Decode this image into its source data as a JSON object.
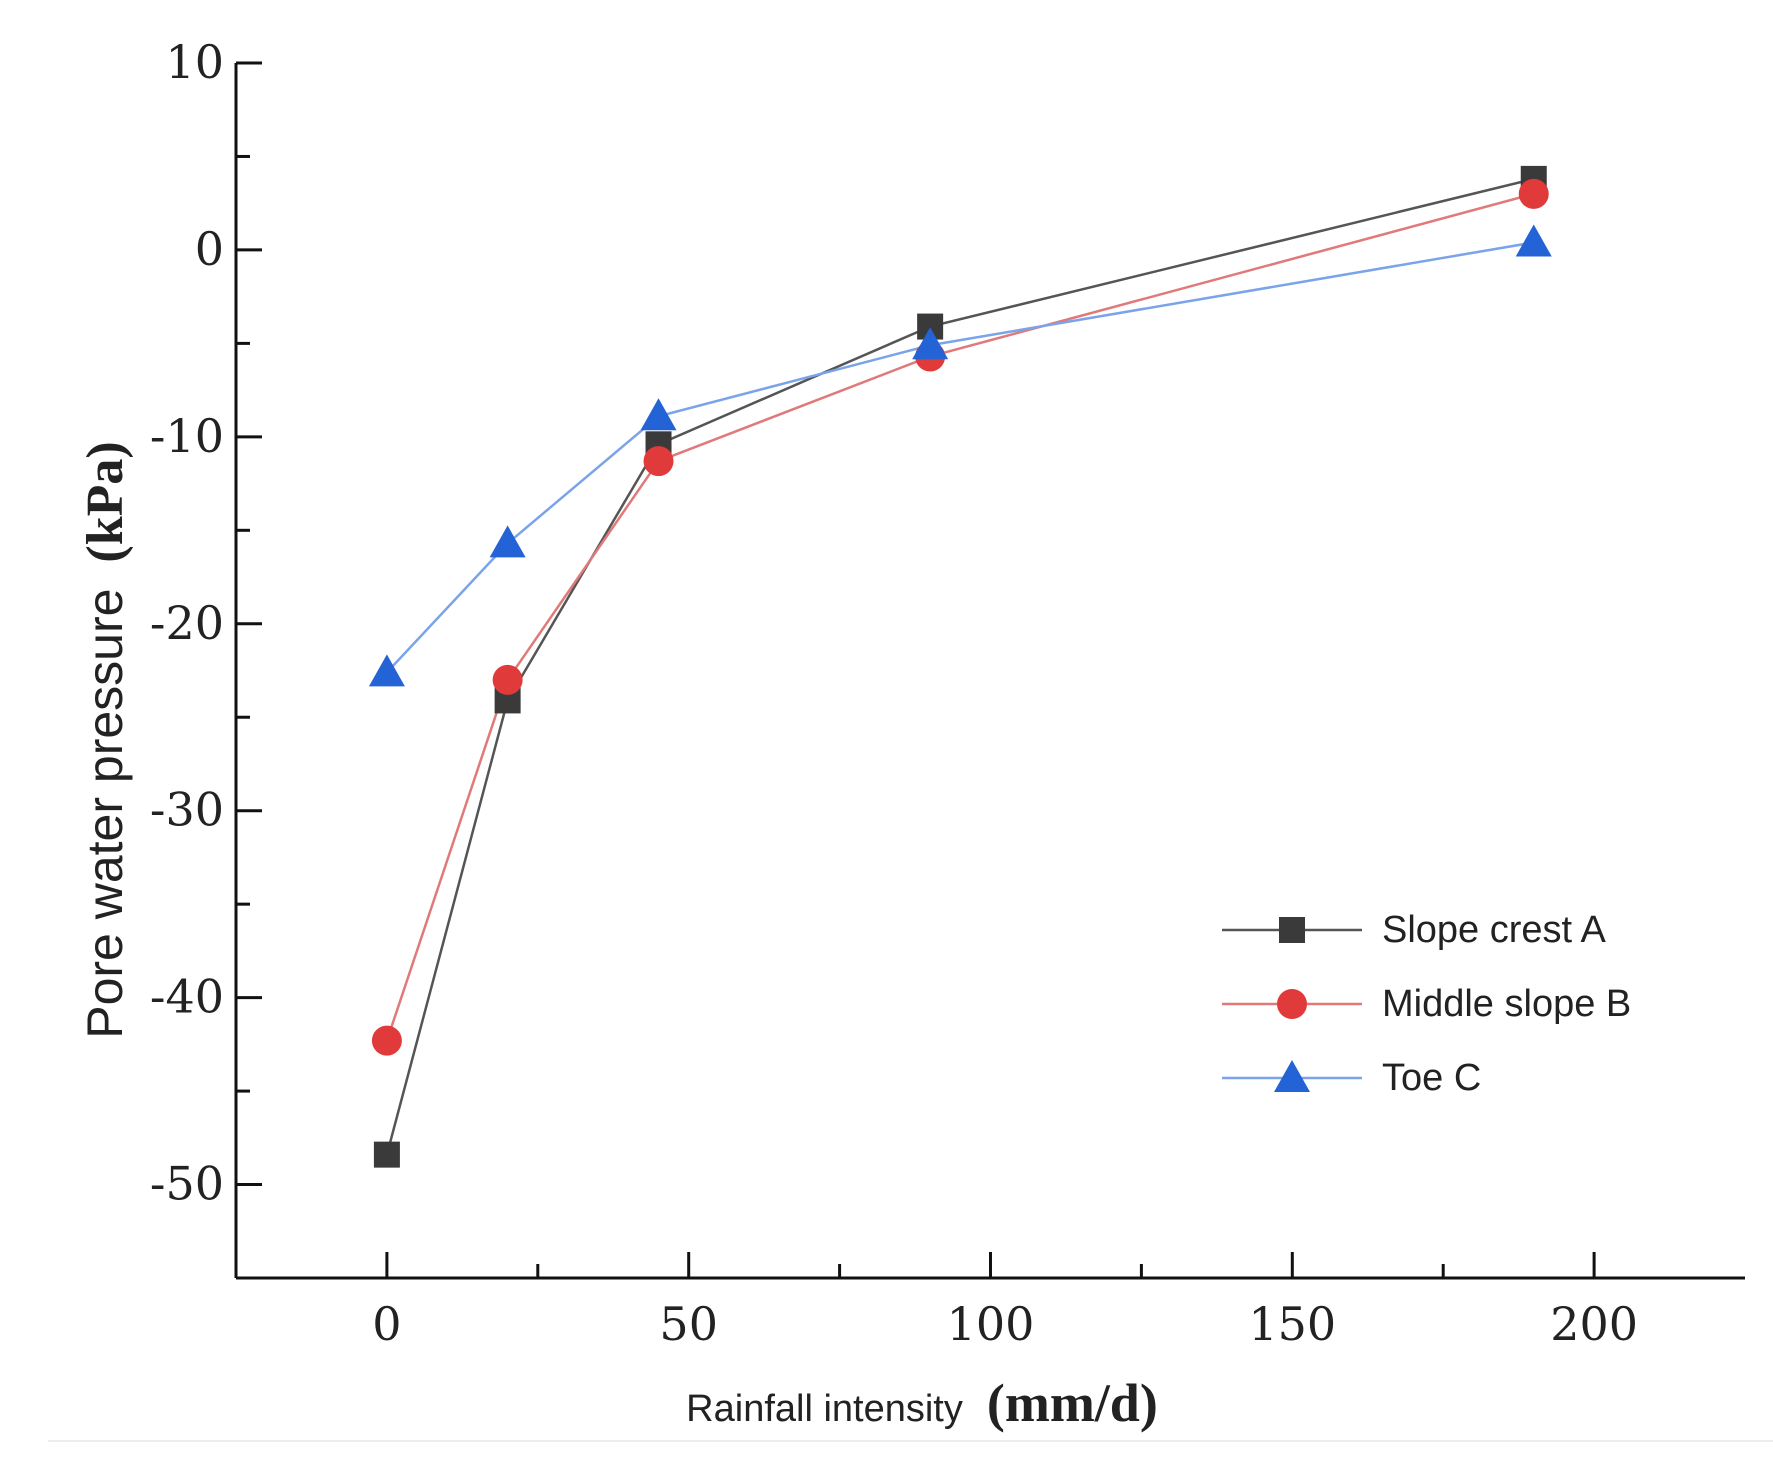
{
  "chart_data": {
    "type": "line",
    "title": "",
    "xlabel": {
      "text": "Rainfall intensity",
      "unit": "(mm/d)"
    },
    "ylabel": {
      "text": "Pore water pressure",
      "unit": "(kPa)"
    },
    "xlim": [
      -25,
      225
    ],
    "ylim": [
      -55,
      10
    ],
    "x_ticks": [
      0,
      50,
      100,
      150,
      200
    ],
    "y_ticks": [
      10,
      0,
      -10,
      -20,
      -30,
      -40,
      -50
    ],
    "grid": false,
    "legend_position": "bottom-right",
    "x": [
      0,
      20,
      45,
      90,
      190
    ],
    "series": [
      {
        "name": "Slope crest A",
        "marker": "square",
        "color": "#3a3a3a",
        "line_color": "#555555",
        "values": [
          -48.4,
          -24.1,
          -10.4,
          -4.1,
          3.8
        ]
      },
      {
        "name": "Middle slope B",
        "marker": "circle",
        "color": "#e03a3a",
        "line_color": "#e07a7a",
        "values": [
          -42.3,
          -23.0,
          -11.3,
          -5.7,
          3.0
        ]
      },
      {
        "name": "Toe C",
        "marker": "triangle",
        "color": "#2463d6",
        "line_color": "#7aa3ea",
        "values": [
          -22.6,
          -15.7,
          -8.9,
          -5.1,
          0.4
        ]
      }
    ]
  }
}
